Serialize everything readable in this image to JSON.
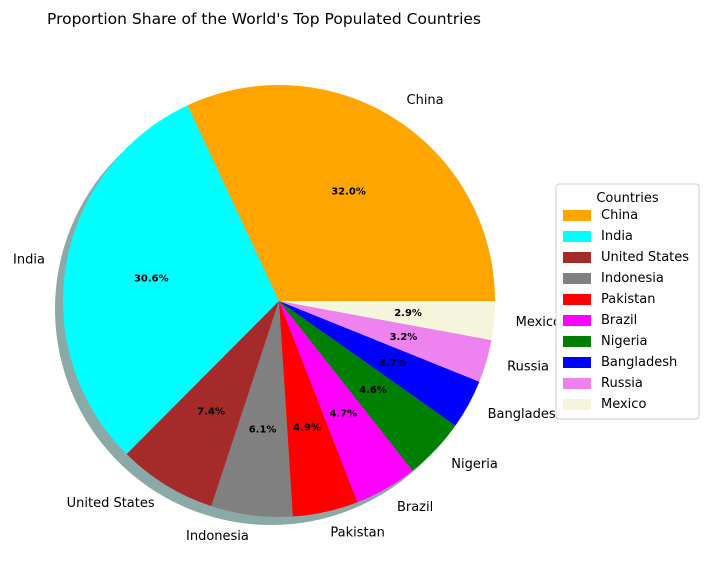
{
  "chart_data": {
    "type": "pie",
    "title": "Proportion Share of the World's Top Populated Countries",
    "categories": [
      "China",
      "India",
      "United States",
      "Indonesia",
      "Pakistan",
      "Brazil",
      "Nigeria",
      "Bangladesh",
      "Russia",
      "Mexico"
    ],
    "values": [
      32.0,
      30.6,
      7.4,
      6.1,
      4.9,
      4.7,
      4.6,
      3.7,
      3.2,
      2.9
    ],
    "value_labels": [
      "32.0%",
      "30.6%",
      "7.4%",
      "6.1%",
      "4.9%",
      "4.7%",
      "4.6%",
      "3.7%",
      "3.2%",
      "2.9%"
    ],
    "colors": [
      "#ffa500",
      "#00ffff",
      "#a52a2a",
      "#808080",
      "#ff0000",
      "#ff00ff",
      "#008000",
      "#0000ff",
      "#ee82ee",
      "#f5f5dc"
    ],
    "start_angle_deg": 0,
    "direction": "counterclockwise",
    "shadow": true,
    "legend": {
      "title": "Countries",
      "placement": "center-right"
    }
  }
}
